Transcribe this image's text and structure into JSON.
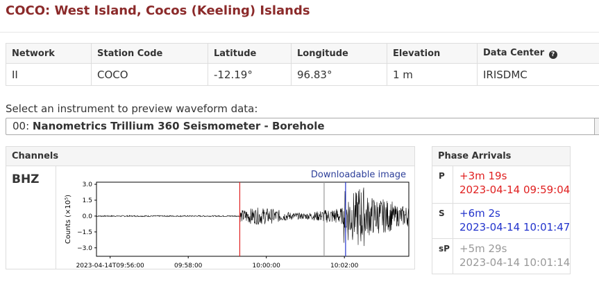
{
  "page": {
    "title": "COCO: West Island, Cocos (Keeling) Islands"
  },
  "station_table": {
    "headers": [
      "Network",
      "Station Code",
      "Latitude",
      "Longitude",
      "Elevation",
      "Data Center"
    ],
    "row": [
      "II",
      "COCO",
      "-12.19°",
      "96.83°",
      "1 m",
      "IRISDMC"
    ]
  },
  "instrument": {
    "label": "Select an instrument to preview waveform data:",
    "selected_prefix": "00: ",
    "selected_name": "Nanometrics Trillium 360 Seismometer - Borehole"
  },
  "channels": {
    "header": "Channels",
    "channel": "BHZ",
    "download_label": "Downloadable image"
  },
  "chart_data": {
    "type": "line",
    "ylabel": "Counts (×10⁵)",
    "yticks": [
      3.0,
      1.5,
      0.0,
      -1.5,
      -3.0
    ],
    "ytick_labels": [
      "3.0",
      "1.5",
      "0.0",
      "−1.5",
      "−3.0"
    ],
    "ylim": [
      -3.8,
      3.2
    ],
    "xtick_labels": [
      "2023-04-14T09:56:00",
      "09:58:00",
      "10:00:00",
      "10:02:00"
    ],
    "xticks_min": [
      0,
      2,
      4,
      6
    ],
    "xlim_min": [
      -0.35,
      7.65
    ],
    "series": [
      {
        "values_desc": "",
        "color": "#000000"
      }
    ],
    "markers": [
      {
        "phase": "P",
        "at_min": 3.32,
        "color": "#e02020"
      },
      {
        "phase": "S",
        "at_min": 6.03,
        "color": "#2233cc"
      },
      {
        "phase": "sP",
        "at_min": 5.48,
        "color": "#999999"
      }
    ]
  },
  "phases": {
    "header": "Phase Arrivals",
    "rows": [
      {
        "name": "P",
        "offset": "+3m 19s",
        "time": "2023-04-14 09:59:04",
        "color": "#e02020"
      },
      {
        "name": "S",
        "offset": "+6m 2s",
        "time": "2023-04-14 10:01:47",
        "color": "#2233cc"
      },
      {
        "name": "sP",
        "offset": "+5m 29s",
        "time": "2023-04-14 10:01:14",
        "color": "#999999"
      }
    ]
  }
}
